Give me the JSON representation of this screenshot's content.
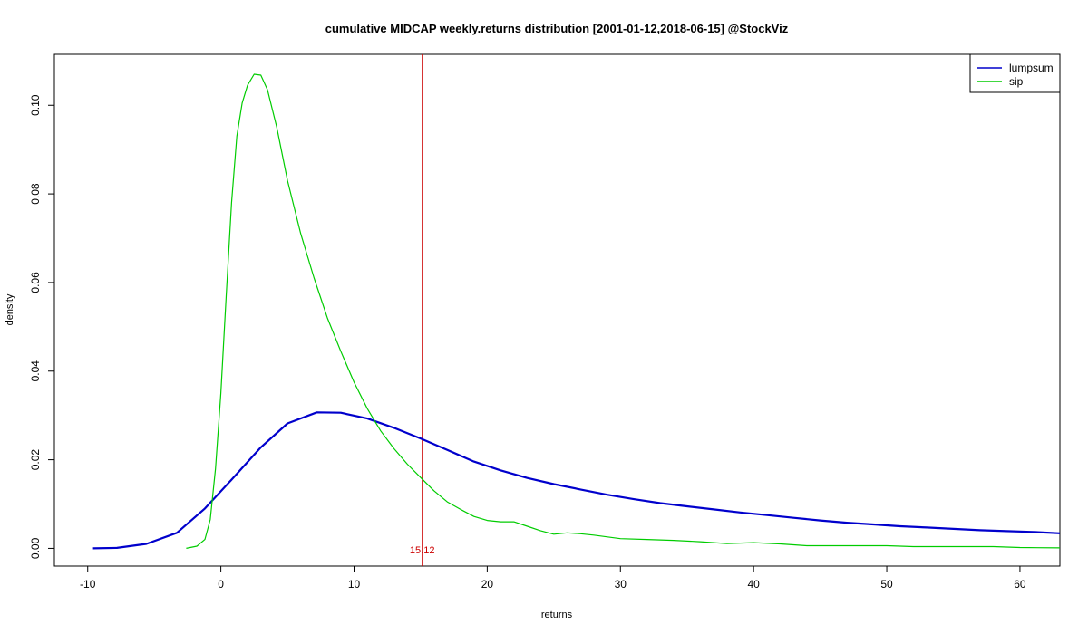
{
  "chart_data": {
    "type": "line",
    "title": "cumulative MIDCAP weekly.returns distribution [2001-01-12,2018-06-15] @StockViz",
    "xlabel": "returns",
    "ylabel": "density",
    "xlim": [
      -12.5,
      63
    ],
    "ylim": [
      -0.004,
      0.1115
    ],
    "x_ticks": [
      -10,
      0,
      10,
      20,
      30,
      40,
      50,
      60
    ],
    "x_tick_labels": [
      "-10",
      "0",
      "10",
      "20",
      "30",
      "40",
      "50",
      "60"
    ],
    "y_ticks": [
      0.0,
      0.02,
      0.04,
      0.06,
      0.08,
      0.1
    ],
    "y_tick_labels": [
      "0.00",
      "0.02",
      "0.04",
      "0.06",
      "0.08",
      "0.10"
    ],
    "grid": false,
    "legend": {
      "placement": "top-right"
    },
    "vline": {
      "x": 15.12,
      "label": "15.12",
      "color": "#cc0000"
    },
    "series": [
      {
        "name": "lumpsum",
        "color": "#0000cc",
        "x": [
          -9.6,
          -7.8,
          -5.6,
          -3.3,
          -1.2,
          0.8,
          3.0,
          5.0,
          7.2,
          9.0,
          11.0,
          13.0,
          15.0,
          17.0,
          19.0,
          21.0,
          23.0,
          25.0,
          27.0,
          29.0,
          31.0,
          33.0,
          35.0,
          37.0,
          39.0,
          41.0,
          43.0,
          45.0,
          47.0,
          49.0,
          51.0,
          53.0,
          55.0,
          57.0,
          59.0,
          61.0,
          63.0
        ],
        "y": [
          0.0,
          0.0001,
          0.001,
          0.0035,
          0.009,
          0.0155,
          0.0228,
          0.0282,
          0.0307,
          0.0306,
          0.0293,
          0.0272,
          0.0248,
          0.0222,
          0.0196,
          0.0176,
          0.0159,
          0.0145,
          0.0133,
          0.0121,
          0.0111,
          0.0102,
          0.0095,
          0.0088,
          0.0081,
          0.0075,
          0.0069,
          0.0063,
          0.0058,
          0.0054,
          0.005,
          0.0047,
          0.0044,
          0.0041,
          0.0039,
          0.0037,
          0.0034
        ]
      },
      {
        "name": "sip",
        "color": "#00cc00",
        "x": [
          -2.6,
          -1.8,
          -1.2,
          -0.8,
          -0.4,
          0.0,
          0.4,
          0.8,
          1.2,
          1.6,
          2.0,
          2.5,
          3.0,
          3.5,
          4.2,
          5.0,
          6.0,
          7.0,
          8.0,
          9.0,
          10.0,
          11.0,
          12.0,
          13.0,
          14.0,
          15.0,
          16.0,
          17.0,
          18.0,
          19.0,
          20.0,
          21.0,
          22.0,
          23.0,
          24.0,
          25.0,
          26.0,
          27.0,
          28.0,
          30.0,
          32.0,
          34.0,
          36.0,
          38.0,
          40.0,
          42.0,
          44.0,
          46.0,
          48.0,
          50.0,
          52.0,
          54.0,
          56.0,
          58.0,
          60.0,
          63.0
        ],
        "y": [
          0.0,
          0.0005,
          0.002,
          0.0065,
          0.018,
          0.035,
          0.057,
          0.078,
          0.093,
          0.1005,
          0.1045,
          0.107,
          0.1068,
          0.1035,
          0.095,
          0.083,
          0.071,
          0.061,
          0.052,
          0.0445,
          0.0375,
          0.0315,
          0.0265,
          0.0225,
          0.019,
          0.016,
          0.013,
          0.0105,
          0.0088,
          0.0072,
          0.0063,
          0.006,
          0.006,
          0.005,
          0.004,
          0.0032,
          0.0035,
          0.0033,
          0.003,
          0.0022,
          0.002,
          0.0018,
          0.0015,
          0.0011,
          0.0013,
          0.001,
          0.0006,
          0.0006,
          0.0006,
          0.0006,
          0.0004,
          0.0004,
          0.0004,
          0.0004,
          0.0002,
          0.0001
        ]
      }
    ]
  }
}
